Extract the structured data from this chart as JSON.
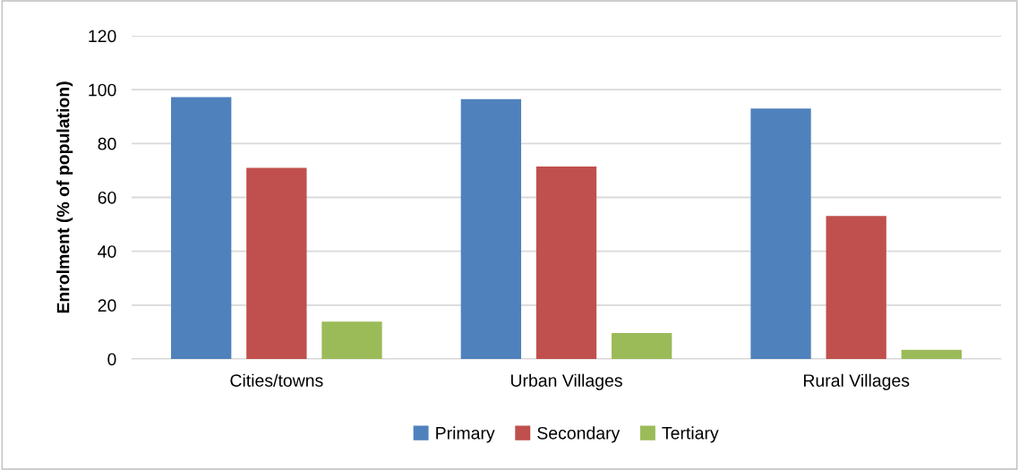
{
  "chart_data": {
    "type": "bar",
    "ylabel": "Enrolment (% of population)",
    "categories": [
      "Cities/towns",
      "Urban Villages",
      "Rural Villages"
    ],
    "series": [
      {
        "name": "Primary",
        "color": "#4f81bd",
        "values": [
          97.2,
          96.5,
          93.0
        ]
      },
      {
        "name": "Secondary",
        "color": "#c0504d",
        "values": [
          71.0,
          71.5,
          53.1
        ]
      },
      {
        "name": "Tertiary",
        "color": "#9bbb59",
        "values": [
          13.9,
          9.6,
          3.4
        ]
      }
    ],
    "ylim": [
      0,
      120
    ],
    "yticks": [
      0,
      20,
      40,
      60,
      80,
      100,
      120
    ],
    "grid": "y",
    "legend": "bottom"
  }
}
